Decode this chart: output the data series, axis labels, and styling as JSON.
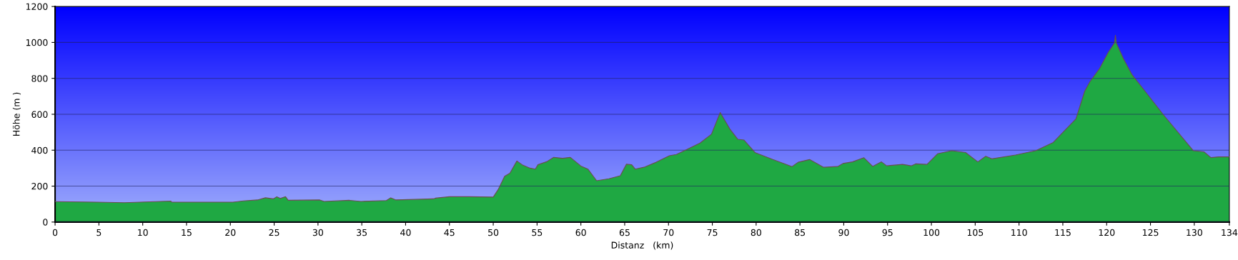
{
  "chart_data": {
    "type": "area",
    "xlabel": "Distanz   (km)",
    "ylabel": "Höhe (m )",
    "xlim": [
      0,
      134
    ],
    "ylim": [
      0,
      1200
    ],
    "xticks": [
      0,
      5,
      10,
      15,
      20,
      25,
      30,
      35,
      40,
      45,
      50,
      55,
      60,
      65,
      70,
      75,
      80,
      85,
      90,
      95,
      100,
      105,
      110,
      115,
      120,
      125,
      130,
      134
    ],
    "yticks": [
      0,
      200,
      400,
      600,
      800,
      1000,
      1200
    ],
    "grid": "y",
    "series": [
      {
        "color": "#1fa843",
        "x": [
          0,
          0.15,
          4.8,
          7.9,
          13.2,
          13.3,
          20.3,
          21.5,
          23.1,
          24.0,
          24.9,
          25.3,
          25.7,
          26.3,
          26.6,
          30.2,
          30.7,
          33.6,
          34.9,
          37.8,
          38.3,
          38.9,
          43.2,
          43.4,
          45.0,
          47.2,
          50,
          50.6,
          51.3,
          51.9,
          52.7,
          53.3,
          54.2,
          54.8,
          55.1,
          56.1,
          56.9,
          57.9,
          58.8,
          60.0,
          60.8,
          61.8,
          63.2,
          64.5,
          65.2,
          65.8,
          66.2,
          67.2,
          68.6,
          70.1,
          70.9,
          71.8,
          73.6,
          74.9,
          75.9,
          77.0,
          77.9,
          78.6,
          79.9,
          80.8,
          81.9,
          84.1,
          84.8,
          86.1,
          87.7,
          89.3,
          89.9,
          91.0,
          92.3,
          93.3,
          94.3,
          94.9,
          96.7,
          97.7,
          98.2,
          99.5,
          100.7,
          102.3,
          103.9,
          105.3,
          106.2,
          106.9,
          109.6,
          111.9,
          113.9,
          115.0,
          116.5,
          117.5,
          118.1,
          119.2,
          120.2,
          120.9,
          121.0,
          121.1,
          121.9,
          122.9,
          124.1,
          126.5,
          129.9,
          131.1,
          131.9,
          132.8,
          134
        ],
        "values": [
          114,
          114,
          111,
          108,
          117,
          111,
          111,
          118,
          123,
          135,
          129,
          141,
          132,
          141,
          121,
          123,
          115,
          121,
          115,
          120,
          135,
          123,
          129,
          133,
          141,
          141,
          139,
          184,
          255,
          272,
          340,
          319,
          300,
          295,
          319,
          336,
          360,
          355,
          360,
          312,
          295,
          230,
          241,
          258,
          322,
          319,
          295,
          305,
          333,
          369,
          376,
          397,
          440,
          489,
          610,
          518,
          461,
          457,
          386,
          369,
          348,
          309,
          333,
          348,
          305,
          309,
          326,
          335,
          358,
          310,
          335,
          313,
          321,
          313,
          324,
          321,
          380,
          397,
          387,
          335,
          366,
          352,
          373,
          397,
          443,
          499,
          575,
          729,
          782,
          855,
          946,
          997,
          1040,
          997,
          911,
          820,
          746,
          596,
          397,
          391,
          359,
          363,
          363
        ]
      }
    ]
  }
}
